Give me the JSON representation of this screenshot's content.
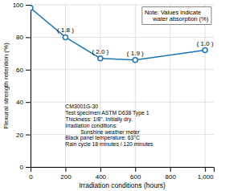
{
  "chart_data": {
    "type": "line",
    "marker": "circle",
    "x": [
      0,
      200,
      400,
      600,
      1000
    ],
    "values": [
      98,
      80,
      67,
      66,
      72
    ],
    "point_labels": [
      null,
      "( 1.8 )",
      "( 2.0 )",
      "( 1.9 )",
      "( 1.0 )"
    ],
    "annotations": [
      "Note: Values indicate\n     water absorption (%)",
      "CM3001G-30\nTest specimen ASTM D638 Type 1\nThickness: 1/8\". Initially dry.\nIrradiation conditions:\n          Sunshine weather meter\nBlack panel temperature: 63°C\nRain cycle 18 minutes / 120 minutes"
    ],
    "x_label": "Irradiation conditions (hours)",
    "y_label": "Flexural strength retention (%)",
    "xlim": [
      0,
      1050
    ],
    "ylim": [
      0,
      100
    ],
    "xticks": [
      0,
      200,
      400,
      600,
      800,
      {
        "value": 1000,
        "label": "1,000"
      }
    ],
    "yticks": [
      0,
      20,
      40,
      60,
      80,
      100
    ],
    "grid": true
  }
}
